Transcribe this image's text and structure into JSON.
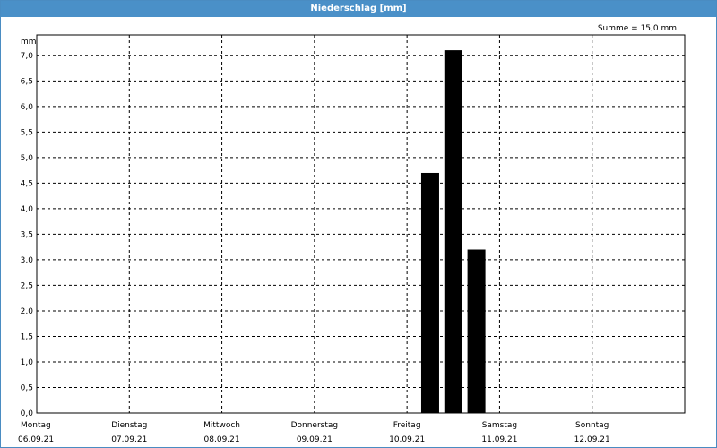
{
  "header": {
    "title": "Niederschlag [mm]"
  },
  "summary": "Summe = 15,0 mm",
  "colors": {
    "titlebar": "#4a90c8",
    "bars": "#000000",
    "grid": "#000000"
  },
  "chart_data": {
    "type": "bar",
    "title": "Niederschlag [mm]",
    "ylabel": "mm",
    "ylim": [
      0,
      7.4
    ],
    "grid": true,
    "y_ticks": [
      "0,0",
      "0,5",
      "1,0",
      "1,5",
      "2,0",
      "2,5",
      "3,0",
      "3,5",
      "4,0",
      "4,5",
      "5,0",
      "5,5",
      "6,0",
      "6,5",
      "7,0"
    ],
    "days": [
      {
        "weekday": "Montag",
        "date": "06.09.21"
      },
      {
        "weekday": "Dienstag",
        "date": "07.09.21"
      },
      {
        "weekday": "Mittwoch",
        "date": "08.09.21"
      },
      {
        "weekday": "Donnerstag",
        "date": "09.09.21"
      },
      {
        "weekday": "Freitag",
        "date": "10.09.21"
      },
      {
        "weekday": "Samstag",
        "date": "11.09.21"
      },
      {
        "weekday": "Sonntag",
        "date": "12.09.21"
      }
    ],
    "bars": [
      {
        "x": "2021-09-10T06:00",
        "value": 4.7
      },
      {
        "x": "2021-09-10T12:00",
        "value": 7.1
      },
      {
        "x": "2021-09-10T18:00",
        "value": 3.2
      }
    ],
    "total": 15.0
  }
}
